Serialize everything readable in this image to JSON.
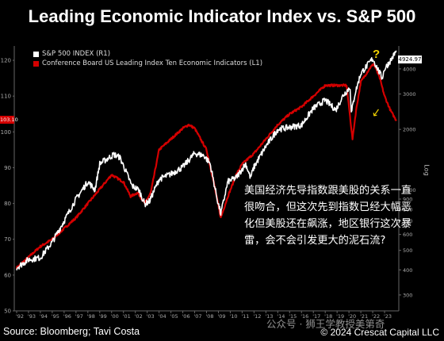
{
  "title": "Leading Economic Indicator Index vs. S&P 500",
  "source": "Source: Bloomberg; Tavi Costa",
  "copyright": "© 2024 Crescat Capital LLC",
  "watermark": "公众号 · 狮王学教授美第奇",
  "annotation": "美国经济先导指数跟美股的关系一直很吻合，但这次先到指数已经大幅恶化但美股还在飙涨，地区银行这次暴雷，会不会引发更大的泥石流?",
  "question_mark": "?",
  "arrow_glyph": "↓",
  "right_axis_label": "Log",
  "last_value_badge": "4924.97",
  "red_badge": "103.10",
  "colors": {
    "sp500": "#ffffff",
    "lei": "#d40000",
    "accent": "#f2d200",
    "background": "#000000",
    "axis": "#666666"
  },
  "chart_data": {
    "type": "line",
    "title": "Leading Economic Indicator Index vs. S&P 500",
    "x_ticks": [
      "'92",
      "'93",
      "'94",
      "'95",
      "'96",
      "'97",
      "'98",
      "'99",
      "'00",
      "'01",
      "'02",
      "'03",
      "'04",
      "'05",
      "'06",
      "'07",
      "'08",
      "'09",
      "'10",
      "'11",
      "'12",
      "'13",
      "'14",
      "'15",
      "'16",
      "'17",
      "'18",
      "'19",
      "'20",
      "'21",
      "'22",
      "'23"
    ],
    "x_range": [
      1991.8,
      2024.2
    ],
    "left_axis": {
      "ticks": [
        50,
        60,
        70,
        80,
        90,
        100,
        110,
        120
      ],
      "range": [
        50,
        124
      ]
    },
    "right_axis": {
      "scale": "log",
      "range": [
        250,
        5200
      ],
      "ticks": [
        300,
        400,
        500,
        600,
        700,
        800,
        900,
        1000,
        2000,
        3000,
        4000
      ],
      "tick_labels": [
        "300",
        "400",
        "500",
        "600",
        "700",
        "800",
        "900",
        "1000",
        "2000",
        "3000",
        "4000"
      ]
    },
    "series": [
      {
        "name": "S&P 500 INDEX (R1)",
        "axis": "right",
        "x": [
          1992,
          1993,
          1994,
          1995,
          1996,
          1997,
          1998,
          1998.6,
          1999,
          2000.2,
          2000.7,
          2001.3,
          2001.7,
          2002.3,
          2002.8,
          2003.2,
          2004,
          2005,
          2006,
          2007,
          2007.8,
          2008.3,
          2008.9,
          2009.2,
          2009.8,
          2010.5,
          2011.3,
          2011.7,
          2012,
          2013,
          2014,
          2015,
          2016,
          2017,
          2018,
          2018.9,
          2019.5,
          2020.1,
          2020.2,
          2020.5,
          2021,
          2022,
          2022.8,
          2023,
          2023.5,
          2024
        ],
        "y": [
          410,
          450,
          460,
          550,
          700,
          900,
          1100,
          1000,
          1350,
          1500,
          1450,
          1200,
          1050,
          1000,
          850,
          880,
          1130,
          1200,
          1300,
          1520,
          1480,
          1350,
          900,
          760,
          1100,
          1150,
          1350,
          1150,
          1300,
          1650,
          2000,
          2050,
          2100,
          2550,
          2800,
          2500,
          2950,
          3250,
          2400,
          3000,
          3800,
          4500,
          3600,
          4000,
          4400,
          4925
        ]
      },
      {
        "name": "Conference Board US Leading Index Ten Economic Indicators  (L1)",
        "axis": "left",
        "x": [
          1992,
          1993,
          1994,
          1995,
          1996,
          1997,
          1998,
          1999,
          2000,
          2001,
          2001.6,
          2002.2,
          2002.8,
          2003.3,
          2004,
          2005,
          2006,
          2006.5,
          2007,
          2008,
          2008.6,
          2009.2,
          2009.8,
          2010.5,
          2011,
          2012,
          2013,
          2014,
          2015,
          2016,
          2017,
          2018,
          2019,
          2019.8,
          2020.3,
          2020.6,
          2021,
          2021.8,
          2022.1,
          2022.6,
          2023,
          2023.5,
          2024
        ],
        "y": [
          62,
          65,
          68,
          70,
          73,
          76,
          80,
          84,
          88,
          86,
          82,
          83,
          80,
          83,
          95,
          98,
          101,
          102,
          101,
          95,
          86,
          76,
          82,
          88,
          91,
          94,
          98,
          102,
          105,
          107,
          110,
          113,
          113,
          113,
          98,
          106,
          114,
          118,
          119,
          115,
          110,
          106,
          103.1
        ]
      }
    ]
  }
}
